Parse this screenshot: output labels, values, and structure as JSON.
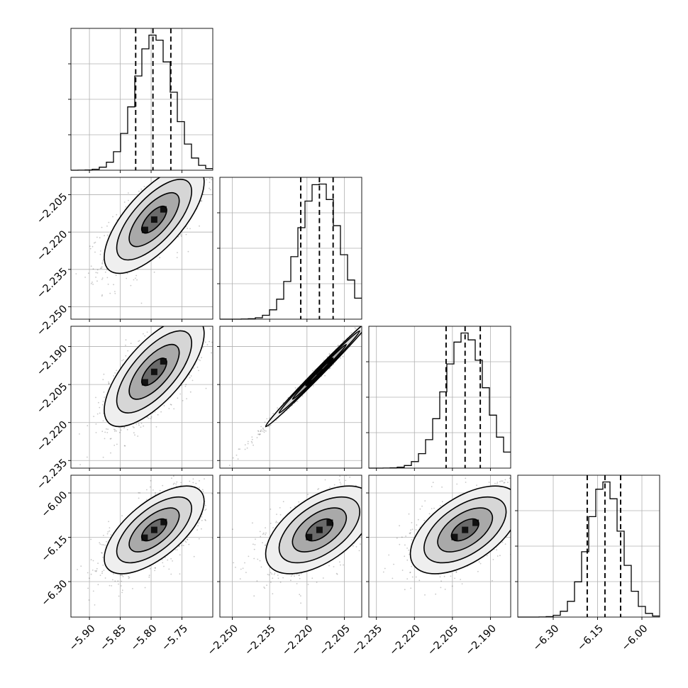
{
  "chart_data": {
    "type": "scatter",
    "grid": true,
    "parameters": [
      {
        "center": -5.795,
        "sigma": 0.03,
        "range": [
          -5.93,
          -5.7
        ],
        "ticks": [
          -5.9,
          -5.85,
          -5.8,
          -5.75
        ],
        "tick_labels": [
          "−5.90",
          "−5.85",
          "−5.80",
          "−5.75"
        ],
        "quantiles": [
          -5.825,
          -5.797,
          -5.768
        ]
      },
      {
        "center": -2.215,
        "sigma": 0.008,
        "range": [
          -2.255,
          -2.198
        ],
        "ticks": [
          -2.25,
          -2.235,
          -2.22,
          -2.205
        ],
        "tick_labels": [
          "−2.250",
          "−2.235",
          "−2.220",
          "−2.205"
        ],
        "quantiles": [
          -2.2225,
          -2.215,
          -2.2095
        ]
      },
      {
        "center": -2.2,
        "sigma": 0.008,
        "range": [
          -2.238,
          -2.182
        ],
        "ticks": [
          -2.235,
          -2.22,
          -2.205,
          -2.19
        ],
        "tick_labels": [
          "−2.235",
          "−2.220",
          "−2.205",
          "−2.190"
        ],
        "quantiles": [
          -2.2075,
          -2.2,
          -2.194
        ]
      },
      {
        "center": -6.125,
        "sigma": 0.055,
        "range": [
          -6.42,
          -5.94
        ],
        "ticks": [
          -6.3,
          -6.15,
          -6.0
        ],
        "tick_labels": [
          "−6.30",
          "−6.15",
          "−6.00"
        ],
        "quantiles": [
          -6.185,
          -6.125,
          -6.072
        ]
      }
    ],
    "correlations": [
      [
        1.0,
        0.7,
        0.7,
        0.65
      ],
      [
        0.7,
        1.0,
        0.995,
        0.55
      ],
      [
        0.7,
        0.995,
        1.0,
        0.55
      ],
      [
        0.65,
        0.55,
        0.55,
        1.0
      ]
    ],
    "contour_levels_sigma": [
      0.5,
      1.0,
      1.5,
      2.0
    ],
    "histogram_bins": 20
  }
}
